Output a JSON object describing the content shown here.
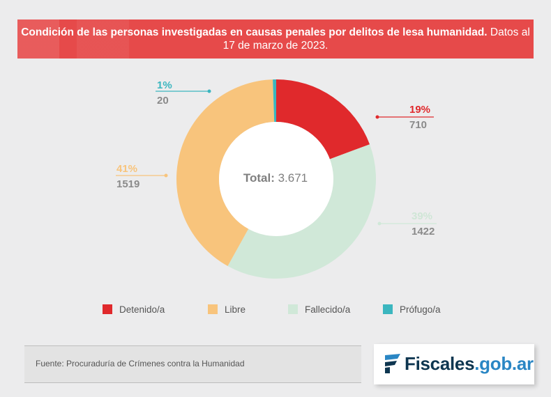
{
  "header": {
    "title_bold": "Condición de las personas investigadas en causas penales por delitos de lesa humanidad.",
    "title_rest": " Datos al 17 de marzo de 2023."
  },
  "chart_data": {
    "type": "pie",
    "donut": true,
    "total_label": "Total:",
    "total_value": "3.671",
    "slices": [
      {
        "label": "Detenido/a",
        "value": 710,
        "percent": "19%",
        "value_label": "710",
        "color": "#e0292c"
      },
      {
        "label": "Fallecido/a",
        "value": 1422,
        "percent": "39%",
        "value_label": "1422",
        "color": "#d0e8d8"
      },
      {
        "label": "Libre",
        "value": 1519,
        "percent": "41%",
        "value_label": "1519",
        "color": "#f8c47c"
      },
      {
        "label": "Prófugo/a",
        "value": 20,
        "percent": "1%",
        "value_label": "20",
        "color": "#3bb6bf"
      }
    ],
    "legend_placement": "bottom"
  },
  "legend": {
    "items": [
      {
        "label": "Detenido/a",
        "color": "#e0292c"
      },
      {
        "label": "Libre",
        "color": "#f8c47c"
      },
      {
        "label": "Fallecido/a",
        "color": "#d0e8d8"
      },
      {
        "label": "Prófugo/a",
        "color": "#3bb6bf"
      }
    ]
  },
  "footer": {
    "source": "Fuente: Procuraduría de Crímenes contra la Humanidad",
    "logo_part1": "Fiscales",
    "logo_part2": ".gob.ar",
    "logo_icon": "fiscales-logo-icon",
    "logo_color": "#0e3650",
    "logo_accent": "#2a86c4"
  }
}
